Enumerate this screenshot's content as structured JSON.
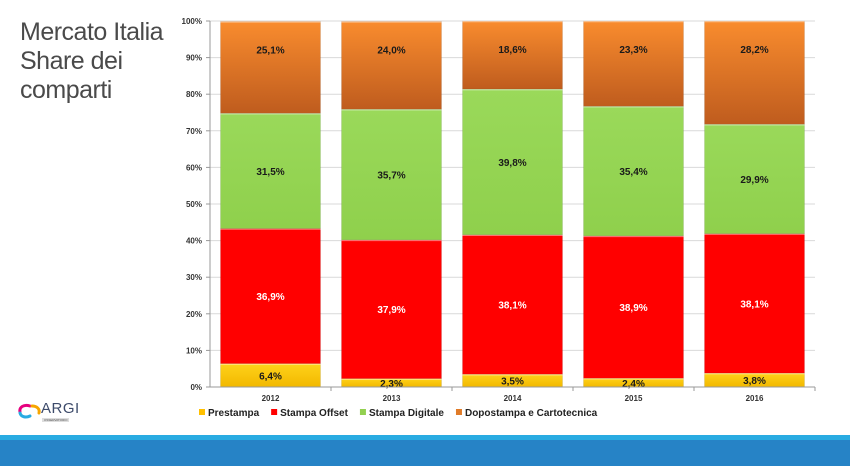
{
  "slide": {
    "title_lines": [
      "Mercato Italia",
      "Share dei",
      "comparti"
    ],
    "logo": {
      "name": "ARGI",
      "subtitle": "OSSERVATORIO"
    }
  },
  "chart_data": {
    "type": "bar",
    "stacked": true,
    "title": "Mercato Italia Share dei comparti",
    "xlabel": "",
    "ylabel": "",
    "ylim": [
      0,
      100
    ],
    "yticks": [
      "0%",
      "10%",
      "20%",
      "30%",
      "40%",
      "50%",
      "60%",
      "70%",
      "80%",
      "90%",
      "100%"
    ],
    "categories": [
      "2012",
      "2013",
      "2014",
      "2015",
      "2016"
    ],
    "series": [
      {
        "name": "Prestampa",
        "color": "#ffc000",
        "label_color": "#1a1a1a",
        "values": [
          6.4,
          2.3,
          3.5,
          2.4,
          3.8
        ],
        "labels": [
          "6,4%",
          "2,3%",
          "3,5%",
          "2,4%",
          "3,8%"
        ]
      },
      {
        "name": "Stampa Offset",
        "color": "#ff0000",
        "label_color": "#ffffff",
        "values": [
          36.9,
          37.9,
          38.1,
          38.9,
          38.1
        ],
        "labels": [
          "36,9%",
          "37,9%",
          "38,1%",
          "38,9%",
          "38,1%"
        ]
      },
      {
        "name": "Stampa Digitale",
        "color": "#92d050",
        "label_color": "#1a1a1a",
        "values": [
          31.5,
          35.7,
          39.8,
          35.4,
          29.9
        ],
        "labels": [
          "31,5%",
          "35,7%",
          "39,8%",
          "35,4%",
          "29,9%"
        ]
      },
      {
        "name": "Dopostampa e Cartotecnica",
        "color": "#e07b28",
        "label_color": "#1a1a1a",
        "values": [
          25.1,
          24.0,
          18.6,
          23.3,
          28.2
        ],
        "labels": [
          "25,1%",
          "24,0%",
          "18,6%",
          "23,3%",
          "28,2%"
        ]
      }
    ],
    "legend_position": "bottom",
    "grid": true
  }
}
